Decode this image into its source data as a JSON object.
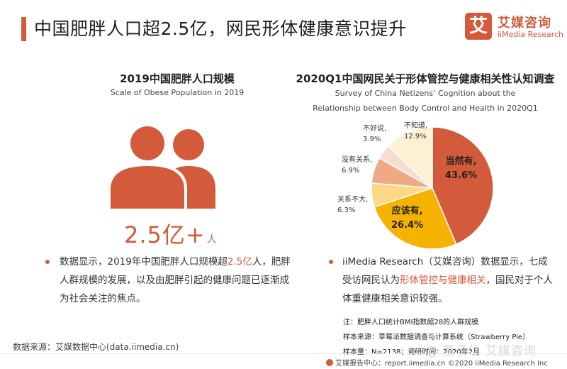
{
  "header": {
    "title": "中国肥胖人口超2.5亿，网民形体健康意识提升",
    "logo_mark": "艾",
    "logo_cn": "艾媒咨询",
    "logo_en": "iiMedia Research"
  },
  "left": {
    "title": "2019中国肥胖人口规模",
    "subtitle": "Scale of Obese Population in 2019",
    "big_number": "2.5亿+",
    "big_unit": "人",
    "para_before": "数据显示，2019年中国肥胖人口规模超",
    "para_highlight": "2.5亿",
    "para_after": "人，肥胖人群规模的发展，以及由肥胖引起的健康问题已逐渐成为社会关注的焦点。"
  },
  "right": {
    "title": "2020Q1中国网民关于形体管控与健康相关性认知调查",
    "subtitle_line1": "Survey of China Netizens’  Cognition about the",
    "subtitle_line2": "Relationship between Body Control and Health in 2020Q1",
    "para_before": "iiMedia Research（艾媒咨询）数据显示，七成受访网民认为",
    "para_highlight": "形体管控与健康相关",
    "para_after": "，国民对于个人体重健康相关意识较强。"
  },
  "chart_data": {
    "type": "pie",
    "slices": [
      {
        "label": "当然有,",
        "value": 43.6,
        "value_label": "43.6%",
        "color": "#d35a3a"
      },
      {
        "label": "应该有,",
        "value": 26.4,
        "value_label": "26.4%",
        "color": "#f5b300"
      },
      {
        "label": "关系不大,",
        "value": 6.3,
        "value_label": "6.3%",
        "color": "#fad886"
      },
      {
        "label": "没有关系,",
        "value": 6.9,
        "value_label": "6.9%",
        "color": "#eeaa85"
      },
      {
        "label": "不好说,",
        "value": 3.9,
        "value_label": "3.9%",
        "color": "#f6ddd4"
      },
      {
        "label": "不知道,",
        "value": 12.9,
        "value_label": "12.9%",
        "color": "#fdf1d3"
      }
    ]
  },
  "notes": {
    "note": "注：肥胖人口统计BMI指数超28的人群规模",
    "sample_source": "样本来源：草莓派数据调查与计算系统（Strawberry  Pie）",
    "sample_size": "样本量：N=2138；调研时间：2020年2月"
  },
  "source_left": "数据来源：艾媒数据中心(data.iimedia.cn)",
  "footer": "艾媒报告中心：report.iimedia.cn  ©2020  iiMedia Research Inc",
  "watermark": "@ 量子位  艾媒咨询"
}
